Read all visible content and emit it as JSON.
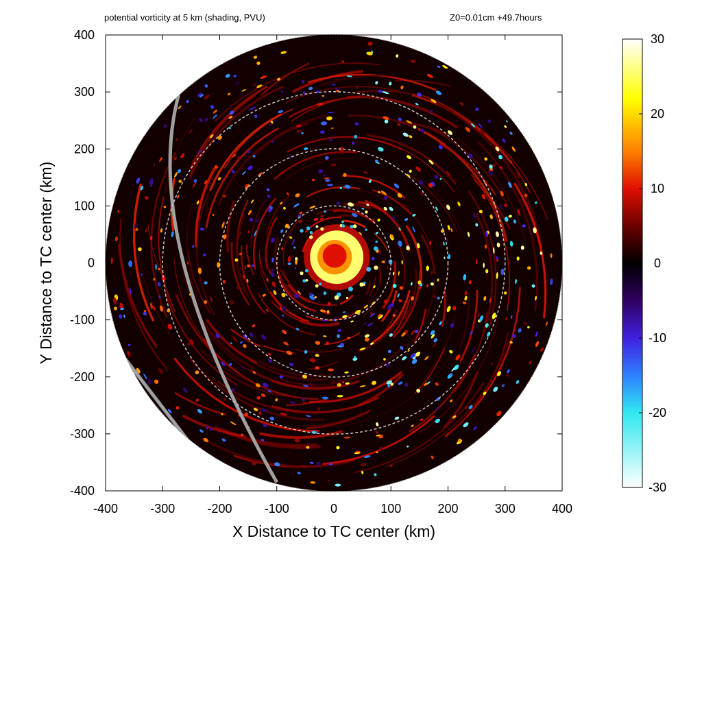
{
  "chart_data": {
    "type": "heatmap",
    "title": "potential vorticity at 5 km (shading, PVU)",
    "subtitle": "Z0=0.01cm  +49.7hours",
    "xlabel": "X Distance to TC center (km)",
    "ylabel": "Y Distance to TC center (km)",
    "xlim": [
      -400,
      400
    ],
    "ylim": [
      -400,
      400
    ],
    "xticks": [
      -400,
      -300,
      -200,
      -100,
      0,
      100,
      200,
      300,
      400
    ],
    "yticks": [
      -400,
      -300,
      -200,
      -100,
      0,
      100,
      200,
      300,
      400
    ],
    "domain_radius_km": 400,
    "reference_circles_km": [
      100,
      200,
      300
    ],
    "colorbar": {
      "min": -30,
      "max": 30,
      "ticks": [
        30,
        20,
        10,
        0,
        -10,
        -20,
        -30
      ],
      "colormap": [
        {
          "value": -30,
          "color": "#ffffff"
        },
        {
          "value": -20,
          "color": "#30e8f0"
        },
        {
          "value": -15,
          "color": "#3080ff"
        },
        {
          "value": -10,
          "color": "#4020e0"
        },
        {
          "value": -5,
          "color": "#300060"
        },
        {
          "value": 0,
          "color": "#000000"
        },
        {
          "value": 5,
          "color": "#6a0000"
        },
        {
          "value": 10,
          "color": "#e01000"
        },
        {
          "value": 15,
          "color": "#ff8000"
        },
        {
          "value": 22,
          "color": "#ffff00"
        },
        {
          "value": 30,
          "color": "#ffffff"
        }
      ]
    },
    "features": {
      "core_center_km": [
        5,
        10
      ],
      "core_radius_km": 55,
      "core_peak_pvu": 30,
      "core_interior_pvu": 10
    },
    "track_line_color": "#a0a0a0",
    "circle_color": "#c8c8c8"
  }
}
